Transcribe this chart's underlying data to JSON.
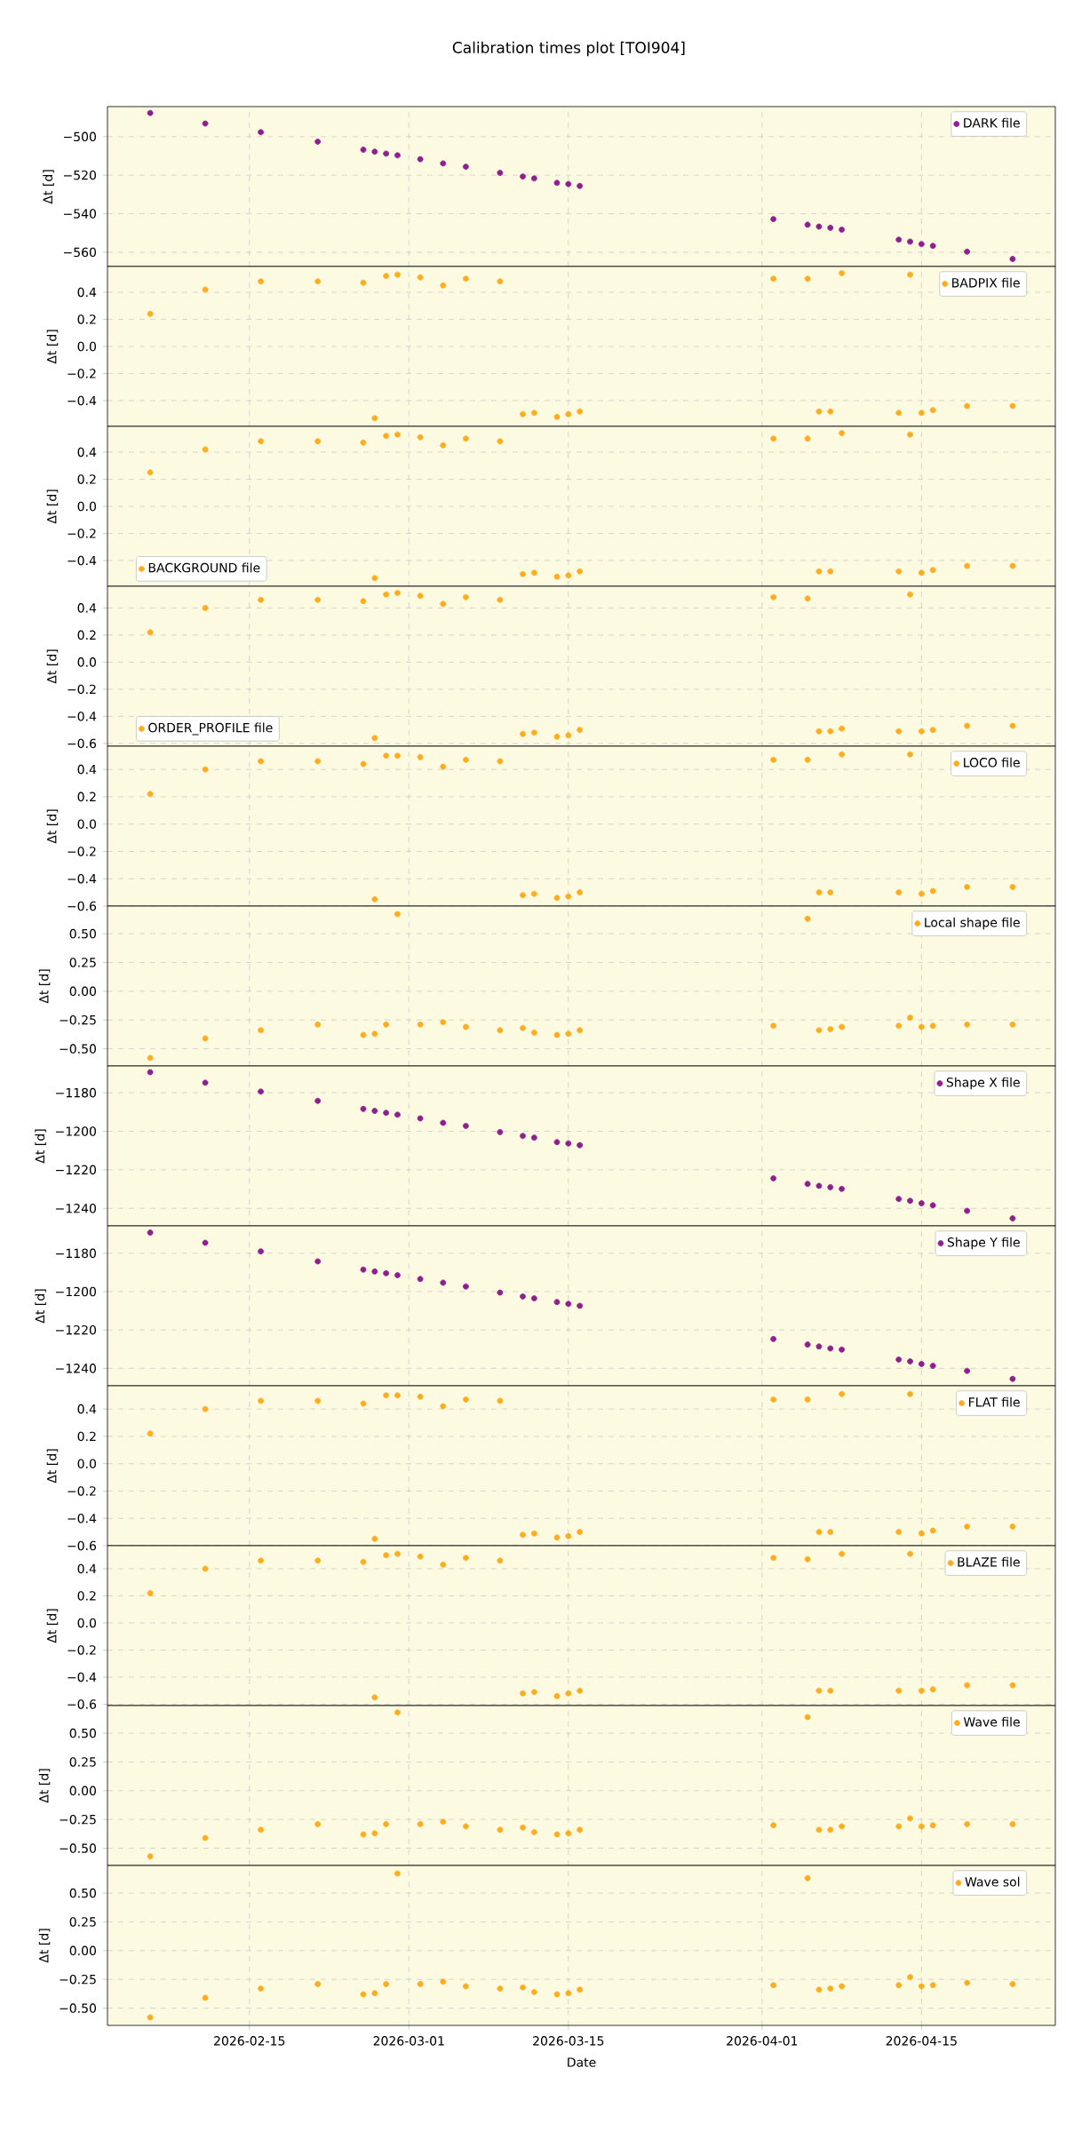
{
  "chart_data": [
    {
      "type": "scatter",
      "title": "Calibration times plot [TOI904]",
      "ylabel": "Δt [d]",
      "grid": true,
      "marker": "circle",
      "legend": "top right",
      "tick_labels": "y",
      "x": [
        "2026-02-06T07:00",
        "2026-02-11T03:00",
        "2026-02-16",
        "2026-02-21",
        "2026-02-25",
        "2026-02-26",
        "2026-02-27",
        "2026-02-28",
        "2026-03-02",
        "2026-03-04",
        "2026-03-06",
        "2026-03-09",
        "2026-03-11",
        "2026-03-12",
        "2026-03-14",
        "2026-03-15",
        "2026-03-16",
        "2026-04-02",
        "2026-04-05",
        "2026-04-06",
        "2026-04-07",
        "2026-04-08",
        "2026-04-13",
        "2026-04-14",
        "2026-04-15",
        "2026-04-16",
        "2026-04-19",
        "2026-04-23"
      ],
      "xlim": [
        "2026-02-02T13:00",
        "2026-04-26T18:00"
      ],
      "xticks": [
        "2026-02-15",
        "2026-03-01",
        "2026-03-15",
        "2026-04-01",
        "2026-04-15"
      ],
      "ylim": [
        -567.4,
        -484.4
      ],
      "yticks": [
        {
          "value": -560,
          "label": "−560"
        },
        {
          "value": -540,
          "label": "−540"
        },
        {
          "value": -520,
          "label": "−520"
        },
        {
          "value": -500,
          "label": "−500"
        }
      ],
      "series": [
        {
          "name": "DARK file",
          "color": "#8f1f8f",
          "values": [
            -487.7,
            -493.2,
            -497.7,
            -502.6,
            -506.8,
            -507.8,
            -508.8,
            -509.7,
            -511.7,
            -513.9,
            -515.6,
            -518.8,
            -520.7,
            -521.7,
            -524.0,
            -524.6,
            -525.6,
            -542.8,
            -545.7,
            -546.7,
            -547.3,
            -548.3,
            -553.5,
            -554.5,
            -555.8,
            -556.7,
            -559.7,
            -563.5
          ]
        }
      ]
    },
    {
      "type": "scatter",
      "ylabel": "Δt [d]",
      "grid": true,
      "marker": "circle",
      "legend": "top right",
      "tick_labels": "y",
      "x": [
        "2026-02-06T07:00",
        "2026-02-11T03:00",
        "2026-02-16",
        "2026-02-21",
        "2026-02-25",
        "2026-02-26",
        "2026-02-27",
        "2026-02-28",
        "2026-03-02",
        "2026-03-04",
        "2026-03-06",
        "2026-03-09",
        "2026-03-11",
        "2026-03-12",
        "2026-03-14",
        "2026-03-15",
        "2026-03-16",
        "2026-04-02",
        "2026-04-05",
        "2026-04-06",
        "2026-04-07",
        "2026-04-08",
        "2026-04-13",
        "2026-04-14",
        "2026-04-15",
        "2026-04-16",
        "2026-04-19",
        "2026-04-23"
      ],
      "xlim": [
        "2026-02-02T13:00",
        "2026-04-26T18:00"
      ],
      "xticks": [
        "2026-02-15",
        "2026-03-01",
        "2026-03-15",
        "2026-04-01",
        "2026-04-15"
      ],
      "ylim": [
        -0.59,
        0.59
      ],
      "yticks": [
        {
          "value": -0.4,
          "label": "−0.4"
        },
        {
          "value": -0.2,
          "label": "−0.2"
        },
        {
          "value": 0,
          "label": "0.0"
        },
        {
          "value": 0.2,
          "label": "0.2"
        },
        {
          "value": 0.4,
          "label": "0.4"
        }
      ],
      "series": [
        {
          "name": "BADPIX file",
          "color": "#ffad1f",
          "values": [
            0.24,
            0.42,
            0.48,
            0.48,
            0.47,
            -0.53,
            0.52,
            0.53,
            0.51,
            0.45,
            0.5,
            0.48,
            -0.5,
            -0.49,
            -0.52,
            -0.5,
            -0.48,
            0.5,
            0.5,
            -0.48,
            -0.48,
            0.54,
            -0.49,
            0.53,
            -0.49,
            -0.47,
            -0.44,
            -0.44
          ]
        }
      ]
    },
    {
      "type": "scatter",
      "ylabel": "Δt [d]",
      "grid": true,
      "marker": "circle",
      "legend": "bottom left",
      "tick_labels": "y",
      "x": [
        "2026-02-06T07:00",
        "2026-02-11T03:00",
        "2026-02-16",
        "2026-02-21",
        "2026-02-25",
        "2026-02-26",
        "2026-02-27",
        "2026-02-28",
        "2026-03-02",
        "2026-03-04",
        "2026-03-06",
        "2026-03-09",
        "2026-03-11",
        "2026-03-12",
        "2026-03-14",
        "2026-03-15",
        "2026-03-16",
        "2026-04-02",
        "2026-04-05",
        "2026-04-06",
        "2026-04-07",
        "2026-04-08",
        "2026-04-13",
        "2026-04-14",
        "2026-04-15",
        "2026-04-16",
        "2026-04-19",
        "2026-04-23"
      ],
      "xlim": [
        "2026-02-02T13:00",
        "2026-04-26T18:00"
      ],
      "xticks": [
        "2026-02-15",
        "2026-03-01",
        "2026-03-15",
        "2026-04-01",
        "2026-04-15"
      ],
      "ylim": [
        -0.59,
        0.59
      ],
      "yticks": [
        {
          "value": -0.4,
          "label": "−0.4"
        },
        {
          "value": -0.2,
          "label": "−0.2"
        },
        {
          "value": 0,
          "label": "0.0"
        },
        {
          "value": 0.2,
          "label": "0.2"
        },
        {
          "value": 0.4,
          "label": "0.4"
        }
      ],
      "series": [
        {
          "name": "BACKGROUND file",
          "color": "#ffad1f",
          "values": [
            0.25,
            0.42,
            0.48,
            0.48,
            0.47,
            -0.53,
            0.52,
            0.53,
            0.51,
            0.45,
            0.5,
            0.48,
            -0.5,
            -0.49,
            -0.52,
            -0.51,
            -0.48,
            0.5,
            0.5,
            -0.48,
            -0.48,
            0.54,
            -0.48,
            0.53,
            -0.49,
            -0.47,
            -0.44,
            -0.44
          ]
        }
      ]
    },
    {
      "type": "scatter",
      "ylabel": "Δt [d]",
      "grid": true,
      "marker": "circle",
      "legend": "bottom left",
      "tick_labels": "y",
      "x": [
        "2026-02-06T07:00",
        "2026-02-11T03:00",
        "2026-02-16",
        "2026-02-21",
        "2026-02-25",
        "2026-02-26",
        "2026-02-27",
        "2026-02-28",
        "2026-03-02",
        "2026-03-04",
        "2026-03-06",
        "2026-03-09",
        "2026-03-11",
        "2026-03-12",
        "2026-03-14",
        "2026-03-15",
        "2026-03-16",
        "2026-04-02",
        "2026-04-05",
        "2026-04-06",
        "2026-04-07",
        "2026-04-08",
        "2026-04-13",
        "2026-04-14",
        "2026-04-15",
        "2026-04-16",
        "2026-04-19",
        "2026-04-23"
      ],
      "xlim": [
        "2026-02-02T13:00",
        "2026-04-26T18:00"
      ],
      "xticks": [
        "2026-02-15",
        "2026-03-01",
        "2026-03-15",
        "2026-04-01",
        "2026-04-15"
      ],
      "ylim": [
        -0.62,
        0.56
      ],
      "yticks": [
        {
          "value": -0.6,
          "label": "−0.6"
        },
        {
          "value": -0.4,
          "label": "−0.4"
        },
        {
          "value": -0.2,
          "label": "−0.2"
        },
        {
          "value": 0,
          "label": "0.0"
        },
        {
          "value": 0.2,
          "label": "0.2"
        },
        {
          "value": 0.4,
          "label": "0.4"
        }
      ],
      "series": [
        {
          "name": "ORDER_PROFILE file",
          "color": "#ffad1f",
          "values": [
            0.22,
            0.4,
            0.46,
            0.46,
            0.45,
            -0.56,
            0.5,
            0.51,
            0.49,
            0.43,
            0.48,
            0.46,
            -0.53,
            -0.52,
            -0.55,
            -0.54,
            -0.5,
            0.48,
            0.47,
            -0.51,
            -0.51,
            -0.49,
            -0.51,
            0.5,
            -0.51,
            -0.5,
            -0.47,
            -0.47
          ]
        }
      ]
    },
    {
      "type": "scatter",
      "ylabel": "Δt [d]",
      "grid": true,
      "marker": "circle",
      "legend": "top right",
      "tick_labels": "y",
      "x": [
        "2026-02-06T07:00",
        "2026-02-11T03:00",
        "2026-02-16",
        "2026-02-21",
        "2026-02-25",
        "2026-02-26",
        "2026-02-27",
        "2026-02-28",
        "2026-03-02",
        "2026-03-04",
        "2026-03-06",
        "2026-03-09",
        "2026-03-11",
        "2026-03-12",
        "2026-03-14",
        "2026-03-15",
        "2026-03-16",
        "2026-04-02",
        "2026-04-05",
        "2026-04-06",
        "2026-04-07",
        "2026-04-08",
        "2026-04-13",
        "2026-04-14",
        "2026-04-15",
        "2026-04-16",
        "2026-04-19",
        "2026-04-23"
      ],
      "xlim": [
        "2026-02-02T13:00",
        "2026-04-26T18:00"
      ],
      "xticks": [
        "2026-02-15",
        "2026-03-01",
        "2026-03-15",
        "2026-04-01",
        "2026-04-15"
      ],
      "ylim": [
        -0.6,
        0.57
      ],
      "yticks": [
        {
          "value": -0.6,
          "label": "−0.6"
        },
        {
          "value": -0.4,
          "label": "−0.4"
        },
        {
          "value": -0.2,
          "label": "−0.2"
        },
        {
          "value": 0,
          "label": "0.0"
        },
        {
          "value": 0.2,
          "label": "0.2"
        },
        {
          "value": 0.4,
          "label": "0.4"
        }
      ],
      "series": [
        {
          "name": "LOCO file",
          "color": "#ffad1f",
          "values": [
            0.22,
            0.4,
            0.46,
            0.46,
            0.44,
            -0.55,
            0.5,
            0.5,
            0.49,
            0.42,
            0.47,
            0.46,
            -0.52,
            -0.51,
            -0.54,
            -0.53,
            -0.5,
            0.47,
            0.47,
            -0.5,
            -0.5,
            0.51,
            -0.5,
            0.51,
            -0.51,
            -0.49,
            -0.46,
            -0.46
          ]
        }
      ]
    },
    {
      "type": "scatter",
      "ylabel": "Δt [d]",
      "grid": true,
      "marker": "circle",
      "legend": "top right",
      "tick_labels": "y",
      "x": [
        "2026-02-06T07:00",
        "2026-02-11T03:00",
        "2026-02-16",
        "2026-02-21",
        "2026-02-25",
        "2026-02-26",
        "2026-02-27",
        "2026-02-28",
        "2026-03-02",
        "2026-03-04",
        "2026-03-06",
        "2026-03-09",
        "2026-03-11",
        "2026-03-12",
        "2026-03-14",
        "2026-03-15",
        "2026-03-16",
        "2026-04-02",
        "2026-04-05",
        "2026-04-06",
        "2026-04-07",
        "2026-04-08",
        "2026-04-13",
        "2026-04-14",
        "2026-04-15",
        "2026-04-16",
        "2026-04-19",
        "2026-04-23"
      ],
      "xlim": [
        "2026-02-02T13:00",
        "2026-04-26T18:00"
      ],
      "xticks": [
        "2026-02-15",
        "2026-03-01",
        "2026-03-15",
        "2026-04-01",
        "2026-04-15"
      ],
      "ylim": [
        -0.65,
        0.74
      ],
      "yticks": [
        {
          "value": -0.5,
          "label": "−0.50"
        },
        {
          "value": -0.25,
          "label": "−0.25"
        },
        {
          "value": 0,
          "label": "0.00"
        },
        {
          "value": 0.25,
          "label": "0.25"
        },
        {
          "value": 0.5,
          "label": "0.50"
        }
      ],
      "series": [
        {
          "name": "Local shape file",
          "color": "#ffad1f",
          "values": [
            -0.58,
            -0.41,
            -0.34,
            -0.29,
            -0.38,
            -0.37,
            -0.29,
            0.67,
            -0.29,
            -0.27,
            -0.31,
            -0.34,
            -0.32,
            -0.36,
            -0.38,
            -0.37,
            -0.34,
            -0.3,
            0.63,
            -0.34,
            -0.33,
            -0.31,
            -0.3,
            -0.23,
            -0.31,
            -0.3,
            -0.29,
            -0.29
          ]
        }
      ]
    },
    {
      "type": "scatter",
      "ylabel": "Δt [d]",
      "grid": true,
      "marker": "circle",
      "legend": "top right",
      "tick_labels": "y",
      "x": [
        "2026-02-06T07:00",
        "2026-02-11T03:00",
        "2026-02-16",
        "2026-02-21",
        "2026-02-25",
        "2026-02-26",
        "2026-02-27",
        "2026-02-28",
        "2026-03-02",
        "2026-03-04",
        "2026-03-06",
        "2026-03-09",
        "2026-03-11",
        "2026-03-12",
        "2026-03-14",
        "2026-03-15",
        "2026-03-16",
        "2026-04-02",
        "2026-04-05",
        "2026-04-06",
        "2026-04-07",
        "2026-04-08",
        "2026-04-13",
        "2026-04-14",
        "2026-04-15",
        "2026-04-16",
        "2026-04-19",
        "2026-04-23"
      ],
      "xlim": [
        "2026-02-02T13:00",
        "2026-04-26T18:00"
      ],
      "xticks": [
        "2026-02-15",
        "2026-03-01",
        "2026-03-15",
        "2026-04-01",
        "2026-04-15"
      ],
      "ylim": [
        -1249.1,
        -1166.1
      ],
      "yticks": [
        {
          "value": -1240,
          "label": "−1240"
        },
        {
          "value": -1220,
          "label": "−1220"
        },
        {
          "value": -1200,
          "label": "−1200"
        },
        {
          "value": -1180,
          "label": "−1180"
        }
      ],
      "series": [
        {
          "name": "Shape X file",
          "color": "#8f1f8f",
          "values": [
            -1169.3,
            -1174.8,
            -1179.4,
            -1184.2,
            -1188.4,
            -1189.4,
            -1190.4,
            -1191.4,
            -1193.3,
            -1195.6,
            -1197.2,
            -1200.4,
            -1202.4,
            -1203.3,
            -1205.6,
            -1206.3,
            -1207.2,
            -1224.4,
            -1227.3,
            -1228.3,
            -1229.0,
            -1229.9,
            -1235.1,
            -1236.1,
            -1237.4,
            -1238.4,
            -1241.3,
            -1245.2
          ]
        }
      ]
    },
    {
      "type": "scatter",
      "ylabel": "Δt [d]",
      "grid": true,
      "marker": "circle",
      "legend": "top right",
      "tick_labels": "y",
      "x": [
        "2026-02-06T07:00",
        "2026-02-11T03:00",
        "2026-02-16",
        "2026-02-21",
        "2026-02-25",
        "2026-02-26",
        "2026-02-27",
        "2026-02-28",
        "2026-03-02",
        "2026-03-04",
        "2026-03-06",
        "2026-03-09",
        "2026-03-11",
        "2026-03-12",
        "2026-03-14",
        "2026-03-15",
        "2026-03-16",
        "2026-04-02",
        "2026-04-05",
        "2026-04-06",
        "2026-04-07",
        "2026-04-08",
        "2026-04-13",
        "2026-04-14",
        "2026-04-15",
        "2026-04-16",
        "2026-04-19",
        "2026-04-23"
      ],
      "xlim": [
        "2026-02-02T13:00",
        "2026-04-26T18:00"
      ],
      "xticks": [
        "2026-02-15",
        "2026-03-01",
        "2026-03-15",
        "2026-04-01",
        "2026-04-15"
      ],
      "ylim": [
        -1249.1,
        -1165.7
      ],
      "yticks": [
        {
          "value": -1240,
          "label": "−1240"
        },
        {
          "value": -1220,
          "label": "−1220"
        },
        {
          "value": -1200,
          "label": "−1200"
        },
        {
          "value": -1180,
          "label": "−1180"
        }
      ],
      "series": [
        {
          "name": "Shape Y file",
          "color": "#8f1f8f",
          "values": [
            -1169.2,
            -1174.5,
            -1179.0,
            -1184.2,
            -1188.5,
            -1189.5,
            -1190.4,
            -1191.4,
            -1193.4,
            -1195.3,
            -1197.3,
            -1200.5,
            -1202.5,
            -1203.5,
            -1205.4,
            -1206.4,
            -1207.4,
            -1224.7,
            -1227.6,
            -1228.6,
            -1229.6,
            -1230.2,
            -1235.4,
            -1236.4,
            -1237.7,
            -1238.7,
            -1241.3,
            -1245.5
          ]
        }
      ]
    },
    {
      "type": "scatter",
      "ylabel": "Δt [d]",
      "grid": true,
      "marker": "circle",
      "legend": "top right",
      "tick_labels": "y",
      "x": [
        "2026-02-06T07:00",
        "2026-02-11T03:00",
        "2026-02-16",
        "2026-02-21",
        "2026-02-25",
        "2026-02-26",
        "2026-02-27",
        "2026-02-28",
        "2026-03-02",
        "2026-03-04",
        "2026-03-06",
        "2026-03-09",
        "2026-03-11",
        "2026-03-12",
        "2026-03-14",
        "2026-03-15",
        "2026-03-16",
        "2026-04-02",
        "2026-04-05",
        "2026-04-06",
        "2026-04-07",
        "2026-04-08",
        "2026-04-13",
        "2026-04-14",
        "2026-04-15",
        "2026-04-16",
        "2026-04-19",
        "2026-04-23"
      ],
      "xlim": [
        "2026-02-02T13:00",
        "2026-04-26T18:00"
      ],
      "xticks": [
        "2026-02-15",
        "2026-03-01",
        "2026-03-15",
        "2026-04-01",
        "2026-04-15"
      ],
      "ylim": [
        -0.6,
        0.57
      ],
      "yticks": [
        {
          "value": -0.6,
          "label": "−0.6"
        },
        {
          "value": -0.4,
          "label": "−0.4"
        },
        {
          "value": -0.2,
          "label": "−0.2"
        },
        {
          "value": 0,
          "label": "0.0"
        },
        {
          "value": 0.2,
          "label": "0.2"
        },
        {
          "value": 0.4,
          "label": "0.4"
        }
      ],
      "series": [
        {
          "name": "FLAT file",
          "color": "#ffad1f",
          "values": [
            0.22,
            0.4,
            0.46,
            0.46,
            0.44,
            -0.55,
            0.5,
            0.5,
            0.49,
            0.42,
            0.47,
            0.46,
            -0.52,
            -0.51,
            -0.54,
            -0.53,
            -0.5,
            0.47,
            0.47,
            -0.5,
            -0.5,
            0.51,
            -0.5,
            0.51,
            -0.51,
            -0.49,
            -0.46,
            -0.46
          ]
        }
      ]
    },
    {
      "type": "scatter",
      "ylabel": "Δt [d]",
      "grid": true,
      "marker": "circle",
      "legend": "top right",
      "tick_labels": "y",
      "x": [
        "2026-02-06T07:00",
        "2026-02-11T03:00",
        "2026-02-16",
        "2026-02-21",
        "2026-02-25",
        "2026-02-26",
        "2026-02-27",
        "2026-02-28",
        "2026-03-02",
        "2026-03-04",
        "2026-03-06",
        "2026-03-09",
        "2026-03-11",
        "2026-03-12",
        "2026-03-14",
        "2026-03-15",
        "2026-03-16",
        "2026-04-02",
        "2026-04-05",
        "2026-04-06",
        "2026-04-07",
        "2026-04-08",
        "2026-04-13",
        "2026-04-14",
        "2026-04-15",
        "2026-04-16",
        "2026-04-19",
        "2026-04-23"
      ],
      "xlim": [
        "2026-02-02T13:00",
        "2026-04-26T18:00"
      ],
      "xticks": [
        "2026-02-15",
        "2026-03-01",
        "2026-03-15",
        "2026-04-01",
        "2026-04-15"
      ],
      "ylim": [
        -0.61,
        0.57
      ],
      "yticks": [
        {
          "value": -0.6,
          "label": "−0.6"
        },
        {
          "value": -0.4,
          "label": "−0.4"
        },
        {
          "value": -0.2,
          "label": "−0.2"
        },
        {
          "value": 0,
          "label": "0.0"
        },
        {
          "value": 0.2,
          "label": "0.2"
        },
        {
          "value": 0.4,
          "label": "0.4"
        }
      ],
      "series": [
        {
          "name": "BLAZE file",
          "color": "#ffad1f",
          "values": [
            0.22,
            0.4,
            0.46,
            0.46,
            0.45,
            -0.55,
            0.5,
            0.51,
            0.49,
            0.43,
            0.48,
            0.46,
            -0.52,
            -0.51,
            -0.54,
            -0.52,
            -0.5,
            0.48,
            0.47,
            -0.5,
            -0.5,
            0.51,
            -0.5,
            0.51,
            -0.5,
            -0.49,
            -0.46,
            -0.46
          ]
        }
      ]
    },
    {
      "type": "scatter",
      "ylabel": "Δt [d]",
      "grid": true,
      "marker": "circle",
      "legend": "top right",
      "tick_labels": "y",
      "x": [
        "2026-02-06T07:00",
        "2026-02-11T03:00",
        "2026-02-16",
        "2026-02-21",
        "2026-02-25",
        "2026-02-26",
        "2026-02-27",
        "2026-02-28",
        "2026-03-02",
        "2026-03-04",
        "2026-03-06",
        "2026-03-09",
        "2026-03-11",
        "2026-03-12",
        "2026-03-14",
        "2026-03-15",
        "2026-03-16",
        "2026-04-02",
        "2026-04-05",
        "2026-04-06",
        "2026-04-07",
        "2026-04-08",
        "2026-04-13",
        "2026-04-14",
        "2026-04-15",
        "2026-04-16",
        "2026-04-19",
        "2026-04-23"
      ],
      "xlim": [
        "2026-02-02T13:00",
        "2026-04-26T18:00"
      ],
      "xticks": [
        "2026-02-15",
        "2026-03-01",
        "2026-03-15",
        "2026-04-01",
        "2026-04-15"
      ],
      "ylim": [
        -0.65,
        0.74
      ],
      "yticks": [
        {
          "value": -0.5,
          "label": "−0.50"
        },
        {
          "value": -0.25,
          "label": "−0.25"
        },
        {
          "value": 0,
          "label": "0.00"
        },
        {
          "value": 0.25,
          "label": "0.25"
        },
        {
          "value": 0.5,
          "label": "0.50"
        }
      ],
      "series": [
        {
          "name": "Wave file",
          "color": "#ffad1f",
          "values": [
            -0.57,
            -0.41,
            -0.34,
            -0.29,
            -0.38,
            -0.37,
            -0.29,
            0.68,
            -0.29,
            -0.27,
            -0.31,
            -0.34,
            -0.32,
            -0.36,
            -0.38,
            -0.37,
            -0.34,
            -0.3,
            0.64,
            -0.34,
            -0.34,
            -0.31,
            -0.31,
            -0.24,
            -0.31,
            -0.3,
            -0.29,
            -0.29
          ]
        }
      ]
    },
    {
      "type": "scatter",
      "xlabel": "Date",
      "ylabel": "Δt [d]",
      "grid": true,
      "marker": "circle",
      "legend": "top right",
      "x": [
        "2026-02-06T07:00",
        "2026-02-11T03:00",
        "2026-02-16",
        "2026-02-21",
        "2026-02-25",
        "2026-02-26",
        "2026-02-27",
        "2026-02-28",
        "2026-03-02",
        "2026-03-04",
        "2026-03-06",
        "2026-03-09",
        "2026-03-11",
        "2026-03-12",
        "2026-03-14",
        "2026-03-15",
        "2026-03-16",
        "2026-04-02",
        "2026-04-05",
        "2026-04-06",
        "2026-04-07",
        "2026-04-08",
        "2026-04-13",
        "2026-04-14",
        "2026-04-15",
        "2026-04-16",
        "2026-04-19",
        "2026-04-23"
      ],
      "xlim": [
        "2026-02-02T13:00",
        "2026-04-26T18:00"
      ],
      "xticks": [
        "2026-02-15",
        "2026-03-01",
        "2026-03-15",
        "2026-04-01",
        "2026-04-15"
      ],
      "ylim": [
        -0.65,
        0.74
      ],
      "yticks": [
        {
          "value": -0.5,
          "label": "−0.50"
        },
        {
          "value": -0.25,
          "label": "−0.25"
        },
        {
          "value": 0,
          "label": "0.00"
        },
        {
          "value": 0.25,
          "label": "0.25"
        },
        {
          "value": 0.5,
          "label": "0.50"
        }
      ],
      "series": [
        {
          "name": "Wave sol",
          "color": "#ffad1f",
          "values": [
            -0.58,
            -0.41,
            -0.33,
            -0.29,
            -0.38,
            -0.37,
            -0.29,
            0.67,
            -0.29,
            -0.27,
            -0.31,
            -0.33,
            -0.32,
            -0.36,
            -0.38,
            -0.37,
            -0.34,
            -0.3,
            0.63,
            -0.34,
            -0.33,
            -0.31,
            -0.3,
            -0.23,
            -0.31,
            -0.3,
            -0.28,
            -0.29
          ]
        }
      ]
    }
  ]
}
